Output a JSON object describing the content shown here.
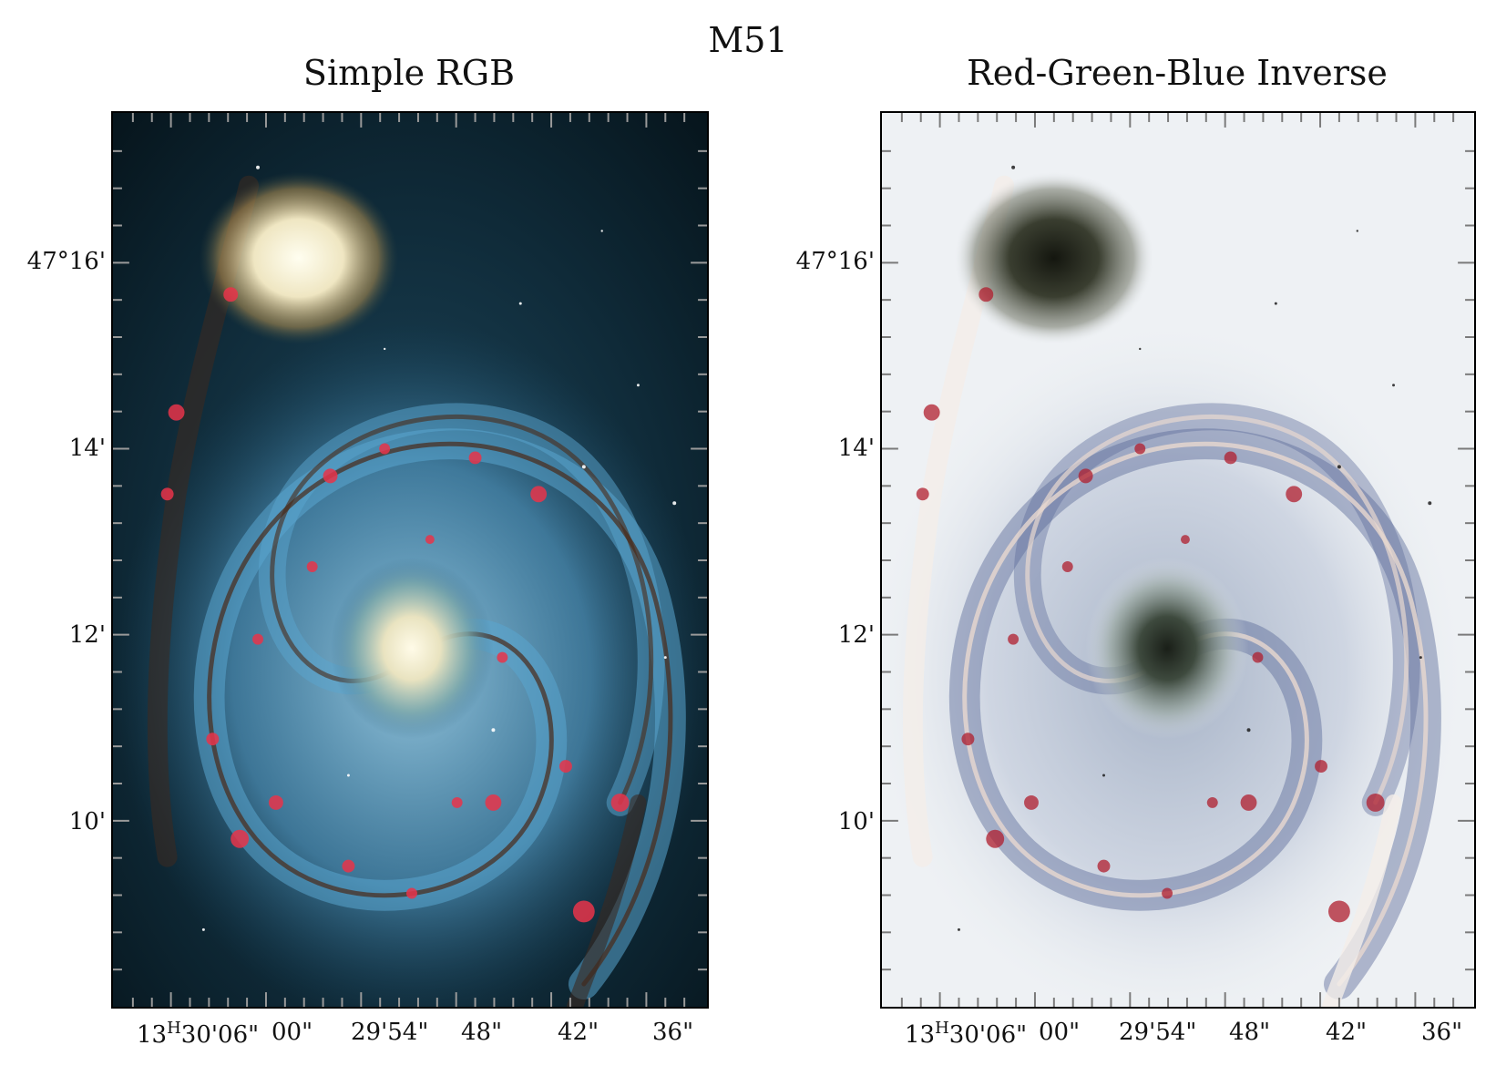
{
  "figure": {
    "title": "M51",
    "panels": [
      {
        "id": "left",
        "title": "Simple RGB",
        "y_ticks": [
          "47°16'",
          "14'",
          "12'",
          "10'"
        ],
        "x_ticks": [
          "13",
          "H",
          "30'06\"",
          "00\"",
          "29'54\"",
          "48\"",
          "42\"",
          "36\""
        ]
      },
      {
        "id": "right",
        "title": "Red-Green-Blue Inverse",
        "y_ticks": [
          "47°16'",
          "14'",
          "12'",
          "10'"
        ],
        "x_ticks": [
          "13",
          "H",
          "30'06\"",
          "00\"",
          "29'54\"",
          "48\"",
          "42\"",
          "36\""
        ]
      }
    ]
  },
  "colors": {
    "left_background": "#0a1a22",
    "left_arm_blue": "#6fb3d8",
    "left_core": "#fff8dc",
    "left_hii_red": "#e8344a",
    "right_background": "#eef1f4",
    "right_arm_blue": "#4b5d94",
    "right_core": "#1b2018",
    "right_hii_red": "#b01e2e"
  },
  "icons": [
    "spiral-galaxy-image",
    "companion-galaxy-image"
  ]
}
